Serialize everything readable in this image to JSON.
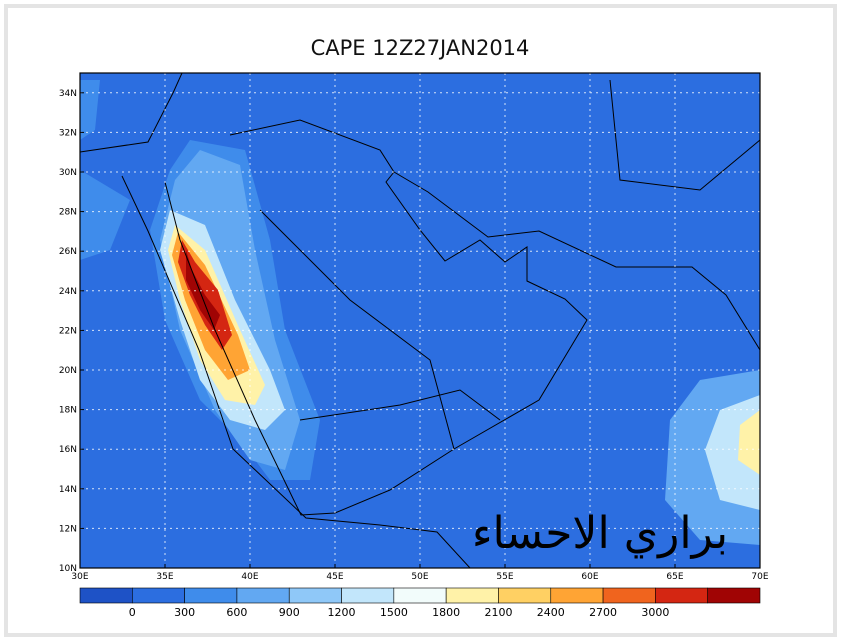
{
  "title": "CAPE 12Z27JAN2014",
  "lat_labels": [
    "10N",
    "12N",
    "14N",
    "16N",
    "18N",
    "20N",
    "22N",
    "24N",
    "26N",
    "28N",
    "30N",
    "32N",
    "34N"
  ],
  "lon_labels": [
    "30E",
    "35E",
    "40E",
    "45E",
    "50E",
    "55E",
    "60E",
    "65E",
    "70E"
  ],
  "colorbar": {
    "labels": [
      "0",
      "300",
      "600",
      "900",
      "1200",
      "1500",
      "1800",
      "2100",
      "2400",
      "2700",
      "3000"
    ],
    "colors": [
      "#1e52c6",
      "#2c6ee0",
      "#3f8ceb",
      "#62a8f2",
      "#8fc8f8",
      "#c2e6fb",
      "#f2fcfb",
      "#fff2a8",
      "#ffd063",
      "#ffa434",
      "#f0641e",
      "#d42612",
      "#a00404"
    ]
  },
  "watermark": "براري الاحساء"
}
